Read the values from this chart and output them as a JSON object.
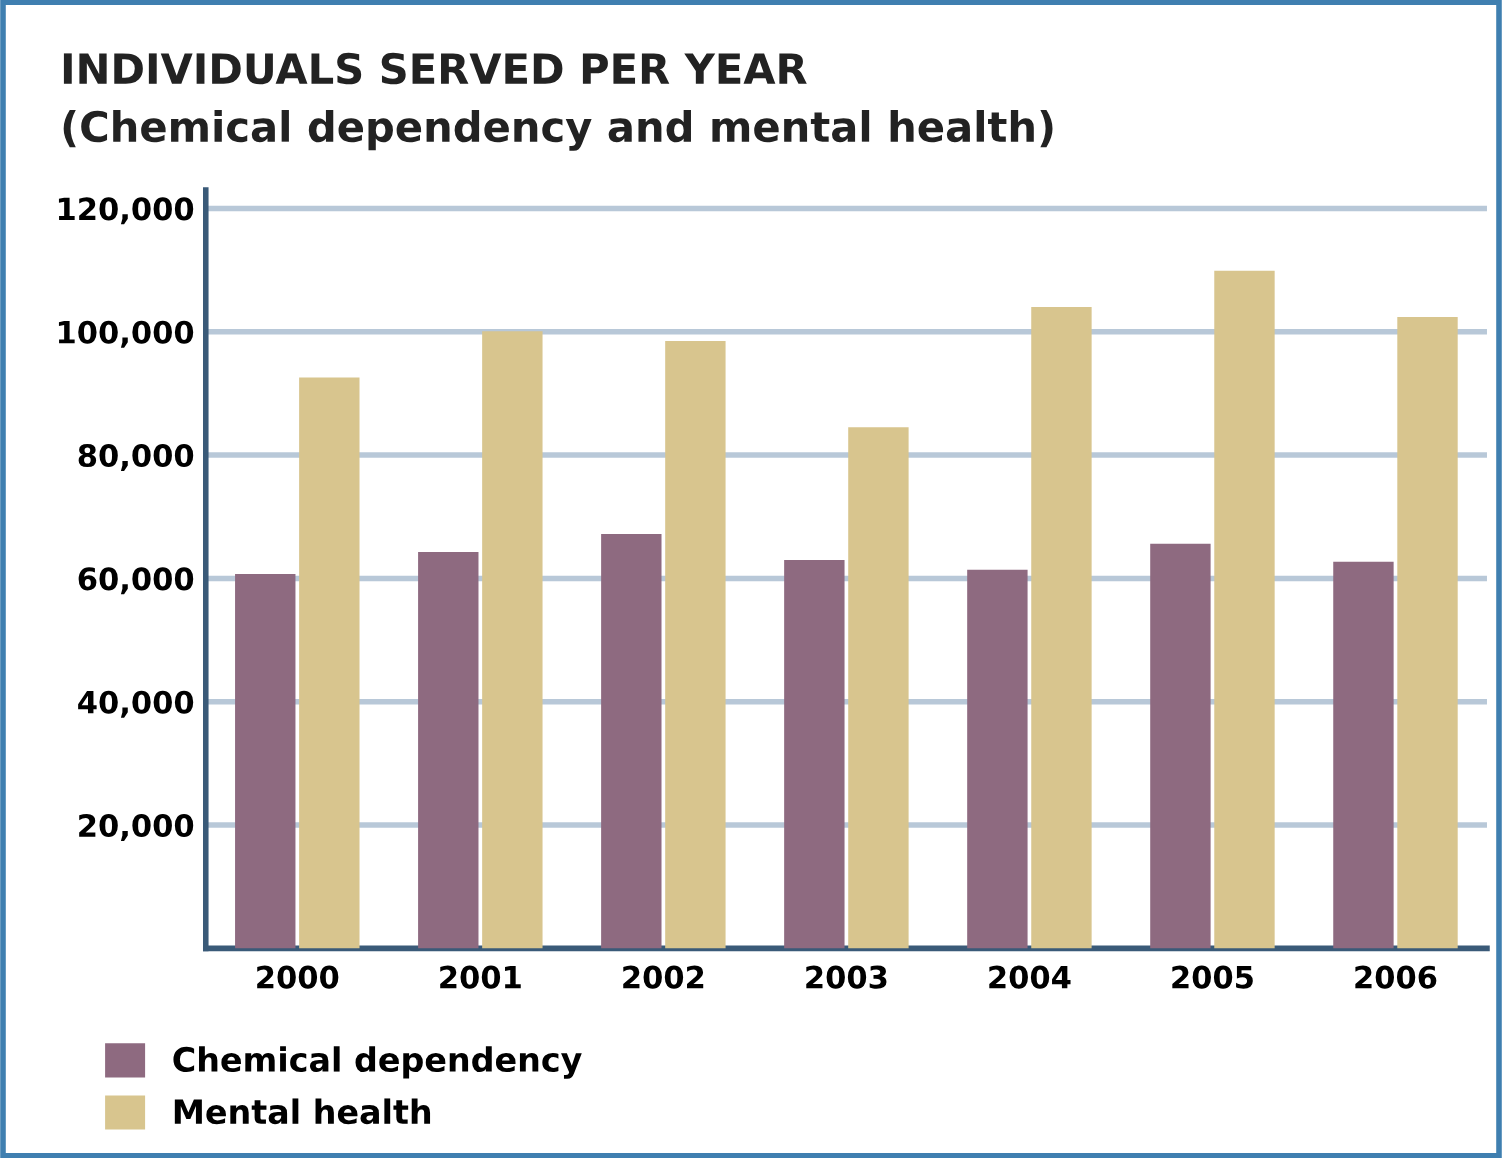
{
  "chart_data": {
    "type": "bar",
    "title": "INDIVIDUALS SERVED PER YEAR",
    "subtitle": "(Chemical dependency and mental health)",
    "categories": [
      "2000",
      "2001",
      "2002",
      "2003",
      "2004",
      "2005",
      "2006"
    ],
    "series": [
      {
        "name": "Chemical dependency",
        "color": "#8e6a80",
        "values": [
          60700,
          64300,
          67200,
          63000,
          61400,
          65600,
          62700
        ]
      },
      {
        "name": "Mental health",
        "color": "#d8c58e",
        "values": [
          92600,
          100100,
          98500,
          84500,
          104000,
          109900,
          102400
        ]
      }
    ],
    "ylim": [
      0,
      123000
    ],
    "yticks": [
      {
        "value": 20000,
        "label": "20,000"
      },
      {
        "value": 40000,
        "label": "40,000"
      },
      {
        "value": 60000,
        "label": "60,000"
      },
      {
        "value": 80000,
        "label": "80,000"
      },
      {
        "value": 100000,
        "label": "100,000"
      },
      {
        "value": 120000,
        "label": "120,000"
      }
    ],
    "grid": "y",
    "legend": "bottom left"
  }
}
